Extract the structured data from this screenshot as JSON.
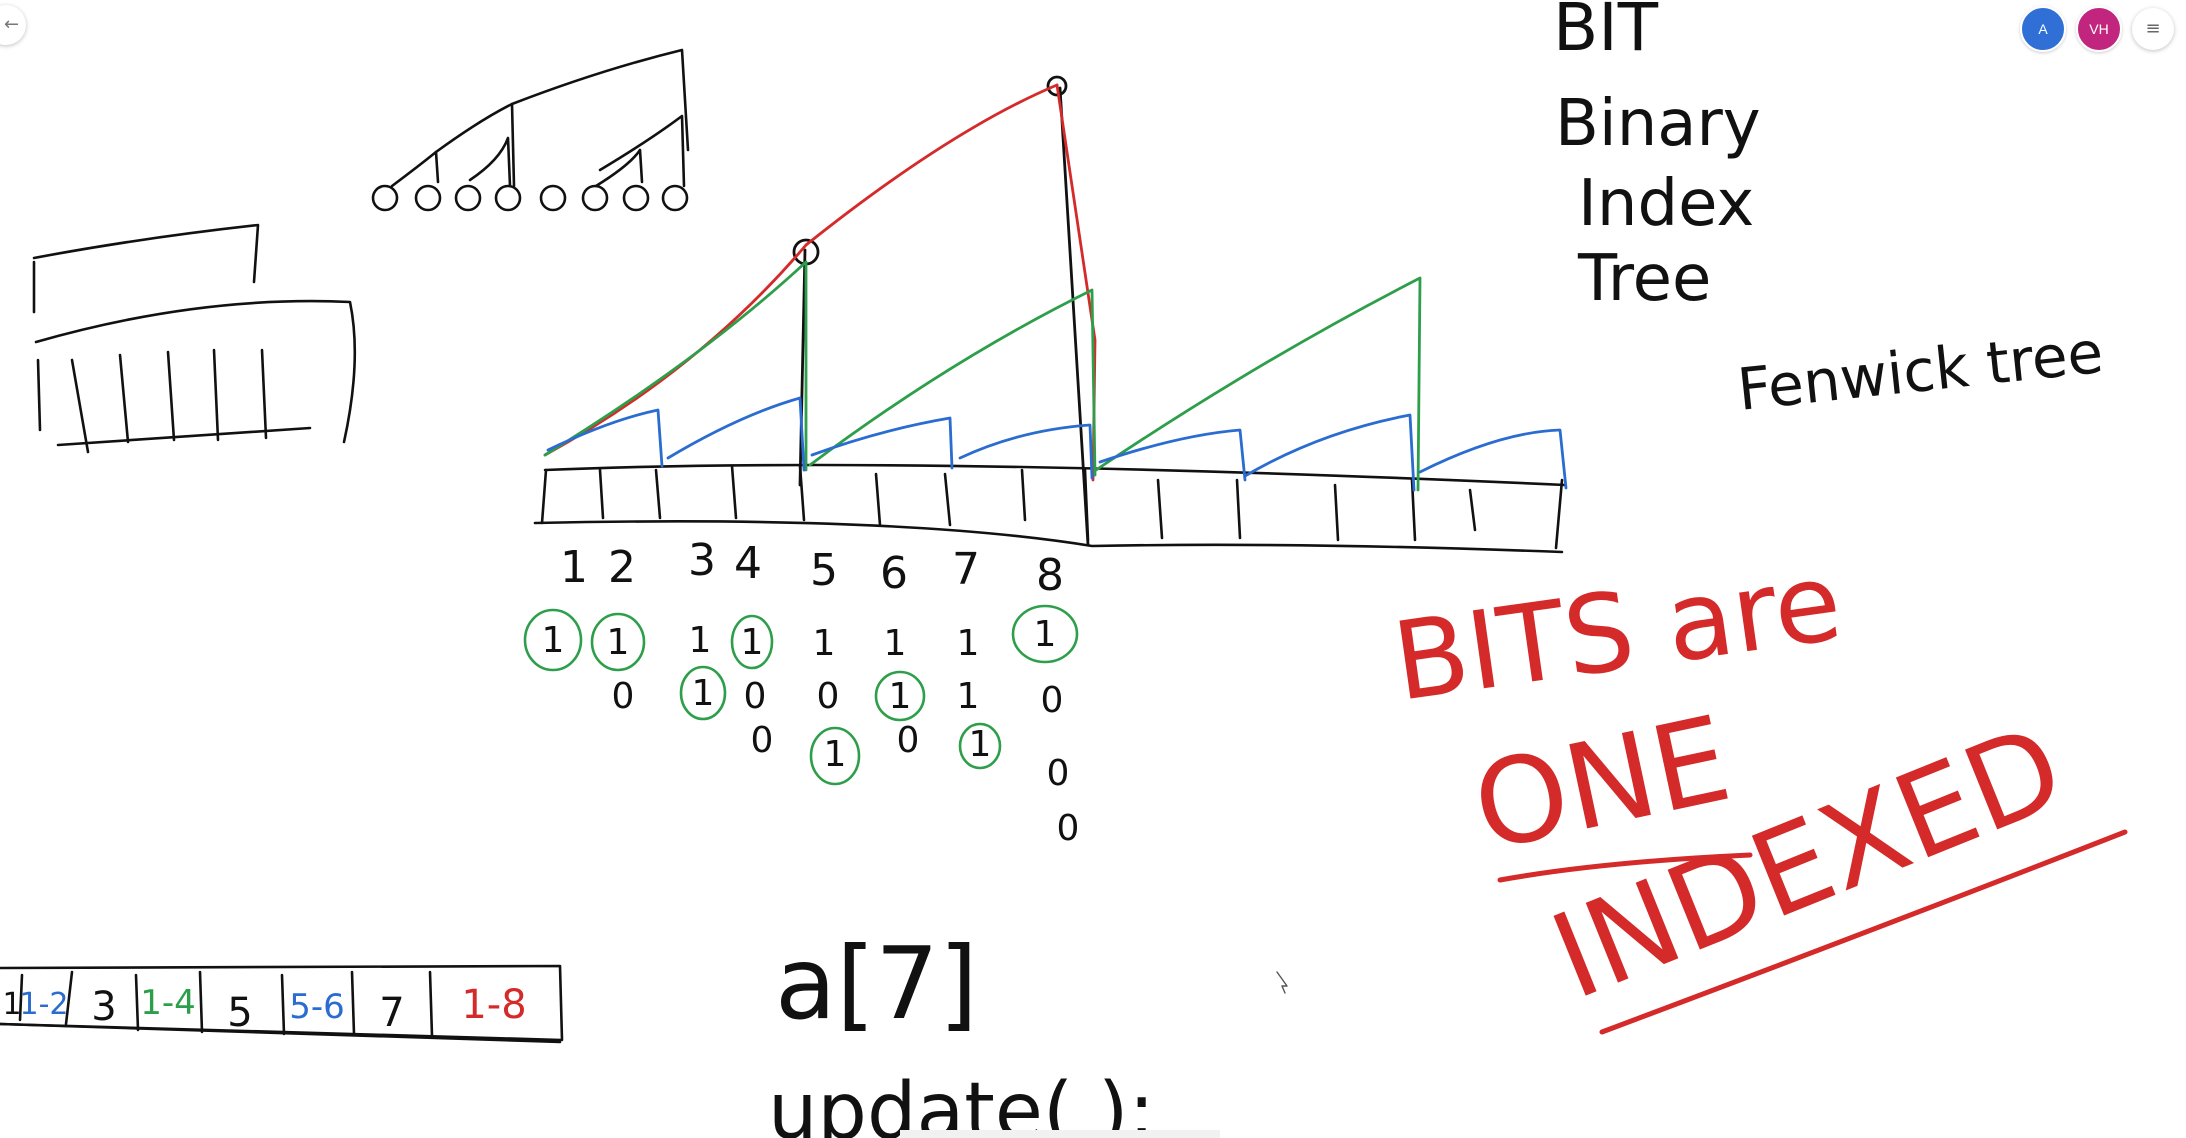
{
  "toolbar": {
    "back_icon": "arrow-left-icon",
    "menu_icon": "hamburger-icon",
    "participants": [
      {
        "initials": "A",
        "color": "#2f6fd6"
      },
      {
        "initials": "VH",
        "color": "#c2257d"
      }
    ]
  },
  "whiteboard": {
    "title_abbrev": "BIT",
    "title_words": [
      "Binary",
      "Index",
      "Tree"
    ],
    "alt_name": "Fenwick tree",
    "note_line1": "BITS are",
    "note_line2": "ONE",
    "note_line3": "INDEXED",
    "index_labels": [
      "1",
      "2",
      "3",
      "4",
      "5",
      "6",
      "7",
      "8"
    ],
    "bit_rows": [
      [
        "1",
        "1",
        "1",
        "1",
        "1",
        "1",
        "1",
        "1"
      ],
      [
        "",
        "0",
        "1",
        "0",
        "0",
        "1",
        "1",
        "0"
      ],
      [
        "",
        "",
        "",
        "0",
        "1",
        "0",
        "1",
        "0"
      ],
      [
        "",
        "",
        "",
        "",
        "",
        "",
        "",
        "0"
      ]
    ],
    "array_cells": [
      "1",
      "1-2",
      "3",
      "1-4",
      "5",
      "5-6",
      "7",
      "1-8"
    ],
    "code_line1": "a[7]",
    "code_line2": "update( );",
    "ink_colors": {
      "black": "#111111",
      "red": "#d42a2a",
      "green": "#2d9e4a",
      "blue": "#2a6ccf"
    }
  }
}
